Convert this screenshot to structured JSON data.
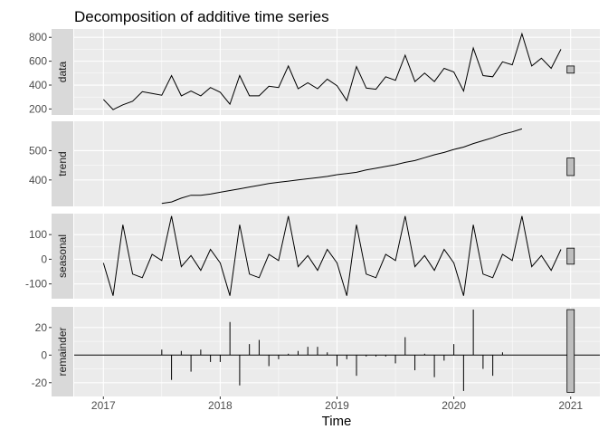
{
  "chart_data": {
    "type": "line",
    "title": "Decomposition of additive time series",
    "xlabel": "Time",
    "x_ticks": [
      "2017",
      "2018",
      "2019",
      "2020",
      "2021"
    ],
    "x_range": [
      2016.75,
      2021.25
    ],
    "grid": true,
    "panels": [
      {
        "name": "data",
        "label": "data",
        "kind": "line",
        "ylim": [
          150,
          870
        ],
        "y_ticks": [
          200,
          400,
          600,
          800
        ],
        "y_tick_labels": [
          "200",
          "400",
          "600",
          "800"
        ],
        "range_bar": [
          500,
          560
        ],
        "start": 2017.0,
        "step": 0.083333,
        "values": [
          280,
          195,
          235,
          265,
          345,
          330,
          315,
          480,
          310,
          350,
          310,
          380,
          340,
          240,
          480,
          310,
          310,
          390,
          380,
          560,
          370,
          420,
          370,
          450,
          395,
          270,
          555,
          375,
          365,
          470,
          440,
          650,
          430,
          500,
          430,
          540,
          510,
          350,
          710,
          480,
          470,
          595,
          570,
          830,
          560,
          625,
          540,
          700
        ]
      },
      {
        "name": "trend",
        "label": "trend",
        "kind": "line",
        "ylim": [
          310,
          600
        ],
        "y_ticks": [
          400,
          500
        ],
        "y_tick_labels": [
          "400",
          "500"
        ],
        "range_bar": [
          415,
          475
        ],
        "start": 2017.5,
        "step": 0.083333,
        "values": [
          320,
          325,
          338,
          348,
          348,
          352,
          358,
          364,
          370,
          376,
          382,
          388,
          392,
          396,
          400,
          404,
          408,
          412,
          418,
          422,
          426,
          434,
          440,
          446,
          452,
          460,
          466,
          476,
          486,
          494,
          504,
          512,
          524,
          534,
          544,
          556,
          564,
          574
        ]
      },
      {
        "name": "seasonal",
        "label": "seasonal",
        "kind": "line",
        "ylim": [
          -160,
          185
        ],
        "y_ticks": [
          100,
          0,
          -100
        ],
        "y_tick_labels": [
          "100",
          "0",
          "-100"
        ],
        "range_bar": [
          -20,
          45
        ],
        "start": 2017.0,
        "step": 0.083333,
        "values": [
          -15,
          -148,
          140,
          -60,
          -75,
          20,
          -5,
          175,
          -30,
          15,
          -45,
          40,
          -15,
          -148,
          140,
          -60,
          -75,
          20,
          -5,
          175,
          -30,
          15,
          -45,
          40,
          -15,
          -148,
          140,
          -60,
          -75,
          20,
          -5,
          175,
          -30,
          15,
          -45,
          40,
          -15,
          -148,
          140,
          -60,
          -75,
          20,
          -5,
          175,
          -30,
          15,
          -45,
          40
        ]
      },
      {
        "name": "remainder",
        "label": "remainder",
        "kind": "bar",
        "ylim": [
          -30,
          35
        ],
        "y_ticks": [
          20,
          0,
          -20
        ],
        "y_tick_labels": [
          "20",
          "0",
          "-20"
        ],
        "range_bar": [
          -27,
          33
        ],
        "start": 2017.5,
        "step": 0.083333,
        "values": [
          4,
          -18,
          3,
          -12,
          4,
          -5,
          -5,
          24,
          -22,
          8,
          11,
          -8,
          -3,
          1,
          3,
          6,
          6,
          2,
          -8,
          -3,
          -15,
          -1,
          -1,
          -1,
          -6,
          13,
          -11,
          1,
          -16,
          -4,
          8,
          -26,
          33,
          -10,
          -15,
          2,
          0,
          0
        ]
      }
    ]
  }
}
